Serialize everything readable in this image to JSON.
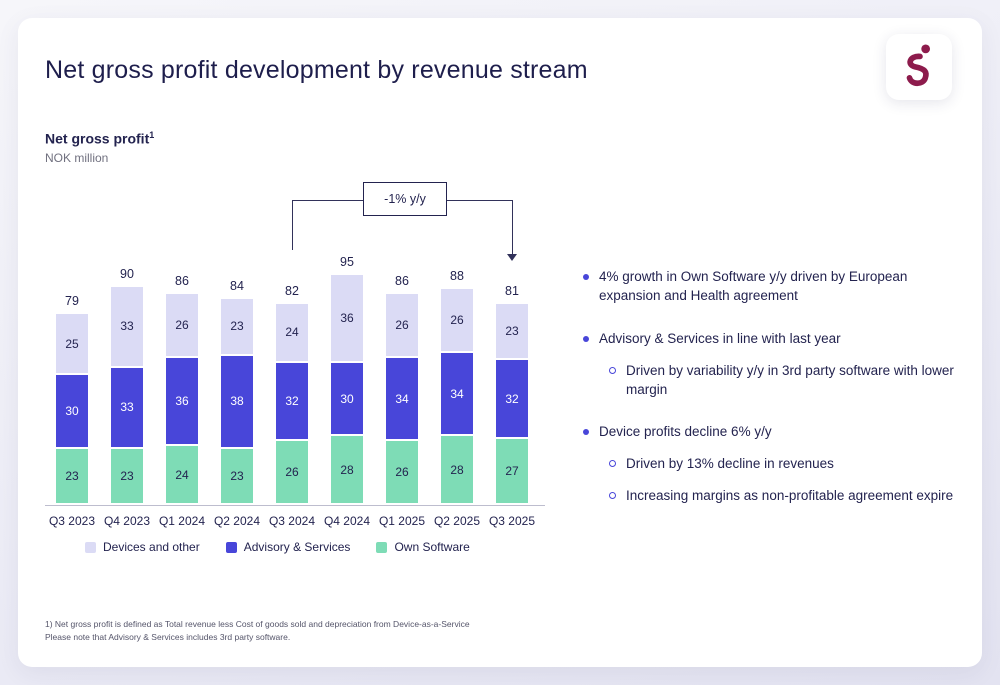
{
  "slide": {
    "title": "Net gross profit development by revenue stream"
  },
  "chart": {
    "title": "Net gross profit",
    "footnote_ref": "1",
    "subtitle": "NOK million",
    "annotation_label": "-1% y/y"
  },
  "chart_data": {
    "type": "bar",
    "stacked": true,
    "title": "Net gross profit",
    "ylabel": "NOK million",
    "categories": [
      "Q3 2023",
      "Q4 2023",
      "Q1 2024",
      "Q2 2024",
      "Q3 2024",
      "Q4 2024",
      "Q1 2025",
      "Q2 2025",
      "Q3 2025"
    ],
    "series": [
      {
        "name": "Own Software",
        "color": "#7EDCB6",
        "label_color": "#23234F",
        "values": [
          23,
          23,
          24,
          23,
          26,
          28,
          26,
          28,
          27
        ]
      },
      {
        "name": "Advisory & Services",
        "color": "#4846D9",
        "label_color": "#FFFFFF",
        "values": [
          30,
          33,
          36,
          38,
          32,
          30,
          34,
          34,
          32
        ]
      },
      {
        "name": "Devices and other",
        "color": "#DBDBF5",
        "label_color": "#23234F",
        "values": [
          25,
          33,
          26,
          23,
          24,
          36,
          26,
          26,
          23
        ]
      }
    ],
    "totals": [
      79,
      90,
      86,
      84,
      82,
      95,
      86,
      88,
      81
    ],
    "annotation": {
      "label": "-1% y/y",
      "from_category": "Q3 2024",
      "to_category": "Q3 2025"
    },
    "legend": [
      {
        "label": "Devices and other",
        "color": "#DBDBF5"
      },
      {
        "label": "Advisory & Services",
        "color": "#4846D9"
      },
      {
        "label": "Own Software",
        "color": "#7EDCB6"
      }
    ],
    "legend_position": "bottom",
    "grid": false
  },
  "insights": {
    "items": [
      {
        "level": 1,
        "text": "4% growth in Own Software y/y driven by European expansion and Health agreement"
      },
      {
        "level": 1,
        "text": "Advisory & Services in line with last year"
      },
      {
        "level": 2,
        "text": "Driven by variability y/y in 3rd party software with lower margin"
      },
      {
        "level": 1,
        "text": "Device profits decline 6% y/y"
      },
      {
        "level": 2,
        "text": "Driven by 13% decline in revenues"
      },
      {
        "level": 2,
        "text": "Increasing margins as non-profitable agreement expire"
      }
    ]
  },
  "footnote": {
    "line1": "1) Net gross profit is defined as Total revenue less Cost of goods sold and depreciation from Device-as-a-Service",
    "line2": "Please note that Advisory & Services includes 3rd party software."
  }
}
